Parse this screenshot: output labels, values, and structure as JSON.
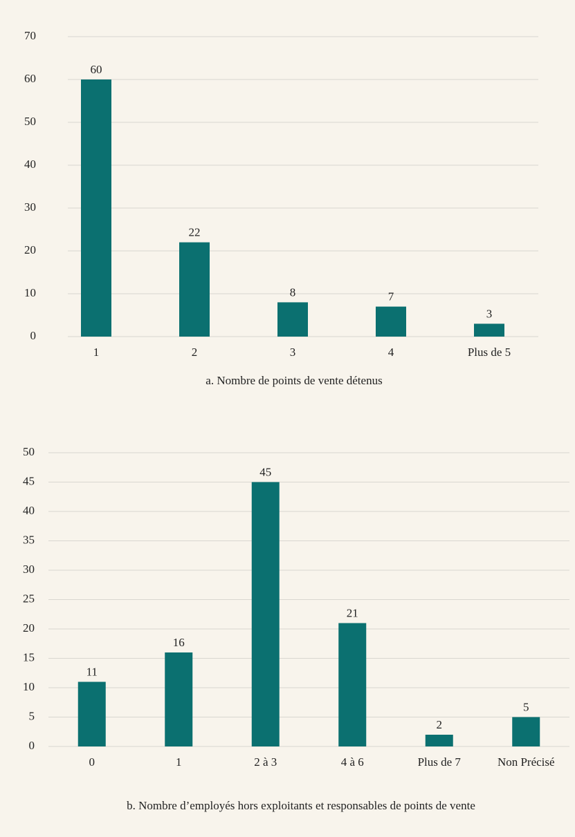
{
  "chart_data": [
    {
      "type": "bar",
      "title": "a. Nombre de points de vente détenus",
      "categories": [
        "1",
        "2",
        "3",
        "4",
        "Plus de 5"
      ],
      "values": [
        60,
        22,
        8,
        7,
        3
      ],
      "color": "#0b7070",
      "ylim": [
        0,
        70
      ],
      "yticks": [
        0,
        10,
        20,
        30,
        40,
        50,
        60,
        70
      ],
      "grid": true
    },
    {
      "type": "bar",
      "title": "b. Nombre d’employés hors exploitants et responsables de points de vente",
      "categories": [
        "0",
        "1",
        "2 à 3",
        "4 à 6",
        "Plus de 7",
        "Non Précisé"
      ],
      "values": [
        11,
        16,
        45,
        21,
        2,
        5
      ],
      "color": "#0b7070",
      "ylim": [
        0,
        50
      ],
      "yticks": [
        0,
        5,
        10,
        15,
        20,
        25,
        30,
        35,
        40,
        45,
        50
      ],
      "grid": true
    }
  ]
}
